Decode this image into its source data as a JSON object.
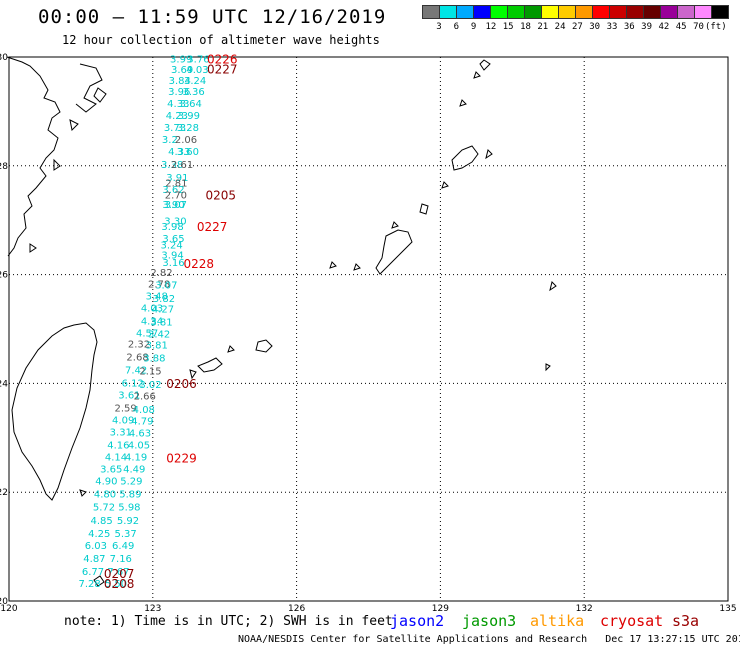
{
  "header": {
    "title": "00:00 — 11:59 UTC 12/16/2019",
    "subtitle": "12 hour collection of altimeter wave heights"
  },
  "colorbar": {
    "colors": [
      "#777777",
      "#00e5e5",
      "#00aaff",
      "#0000ff",
      "#00ff00",
      "#00cc00",
      "#009900",
      "#ffff00",
      "#ffcc00",
      "#ff9900",
      "#ff0000",
      "#cc0000",
      "#990000",
      "#660000",
      "#990099",
      "#cc66cc",
      "#ff88ff",
      "#000000"
    ],
    "labels": [
      "3",
      "6",
      "9",
      "12",
      "15",
      "18",
      "21",
      "24",
      "27",
      "30",
      "33",
      "36",
      "39",
      "42",
      "45",
      "70",
      "(ft)"
    ]
  },
  "map": {
    "lon_range": [
      120,
      135
    ],
    "lat_range": [
      20,
      30
    ],
    "lon_ticks": [
      "120",
      "123",
      "126",
      "129",
      "132",
      "135"
    ],
    "lat_ticks": [
      "30",
      "28",
      "26",
      "24",
      "22",
      "20"
    ],
    "colors": {
      "cyan": "#00cccc",
      "gray": "#555555",
      "red": "#dd0000",
      "darkred": "#880000"
    }
  },
  "chart_data": {
    "type": "scatter",
    "xlabel": "",
    "ylabel": "",
    "xlim": [
      120,
      135
    ],
    "ylim": [
      20,
      30
    ],
    "swh_labels": [
      {
        "lon": 123.36,
        "lat": 29.9,
        "t": "3.99",
        "c": "cyan"
      },
      {
        "lon": 123.72,
        "lat": 29.9,
        "t": "3.76",
        "c": "cyan"
      },
      {
        "lon": 123.38,
        "lat": 29.71,
        "t": "3.69",
        "c": "cyan"
      },
      {
        "lon": 123.7,
        "lat": 29.71,
        "t": "4.03",
        "c": "cyan"
      },
      {
        "lon": 123.33,
        "lat": 29.5,
        "t": "3.84",
        "c": "cyan"
      },
      {
        "lon": 123.65,
        "lat": 29.5,
        "t": "3.24",
        "c": "cyan"
      },
      {
        "lon": 123.32,
        "lat": 29.3,
        "t": "3.96",
        "c": "cyan"
      },
      {
        "lon": 123.62,
        "lat": 29.3,
        "t": "3.36",
        "c": "cyan"
      },
      {
        "lon": 123.3,
        "lat": 29.08,
        "t": "4.33",
        "c": "cyan"
      },
      {
        "lon": 123.56,
        "lat": 29.08,
        "t": "3.64",
        "c": "cyan"
      },
      {
        "lon": 123.27,
        "lat": 28.86,
        "t": "4.23",
        "c": "cyan"
      },
      {
        "lon": 123.52,
        "lat": 28.86,
        "t": "3.99",
        "c": "cyan"
      },
      {
        "lon": 123.23,
        "lat": 28.64,
        "t": "3.73",
        "c": "cyan"
      },
      {
        "lon": 123.5,
        "lat": 28.64,
        "t": "3.28",
        "c": "cyan"
      },
      {
        "lon": 123.19,
        "lat": 28.42,
        "t": "3.2",
        "c": "cyan"
      },
      {
        "lon": 123.46,
        "lat": 28.42,
        "t": "2.06",
        "c": "gray"
      },
      {
        "lon": 123.32,
        "lat": 28.2,
        "t": "4.33",
        "c": "cyan"
      },
      {
        "lon": 123.5,
        "lat": 28.2,
        "t": "3.60",
        "c": "cyan"
      },
      {
        "lon": 123.17,
        "lat": 27.96,
        "t": "3.38",
        "c": "cyan"
      },
      {
        "lon": 123.38,
        "lat": 27.96,
        "t": "2.61",
        "c": "gray"
      },
      {
        "lon": 123.28,
        "lat": 27.72,
        "t": "3.91",
        "c": "cyan"
      },
      {
        "lon": 123.26,
        "lat": 27.62,
        "t": "2.81",
        "c": "gray"
      },
      {
        "lon": 123.2,
        "lat": 27.5,
        "t": "3.62",
        "c": "cyan"
      },
      {
        "lon": 123.25,
        "lat": 27.4,
        "t": "2.70",
        "c": "gray"
      },
      {
        "lon": 123.2,
        "lat": 27.22,
        "t": "3.90",
        "c": "cyan"
      },
      {
        "lon": 123.25,
        "lat": 27.22,
        "t": "3.07",
        "c": "cyan"
      },
      {
        "lon": 123.24,
        "lat": 26.92,
        "t": "3.30",
        "c": "cyan"
      },
      {
        "lon": 123.18,
        "lat": 26.82,
        "t": "3.98",
        "c": "cyan"
      },
      {
        "lon": 123.2,
        "lat": 26.6,
        "t": "3.65",
        "c": "cyan"
      },
      {
        "lon": 123.16,
        "lat": 26.48,
        "t": "3.24",
        "c": "cyan"
      },
      {
        "lon": 123.18,
        "lat": 26.3,
        "t": "3.94",
        "c": "cyan"
      },
      {
        "lon": 123.2,
        "lat": 26.16,
        "t": "3.16",
        "c": "cyan"
      },
      {
        "lon": 122.95,
        "lat": 25.97,
        "t": "2.82",
        "c": "gray"
      },
      {
        "lon": 122.9,
        "lat": 25.76,
        "t": "2.78",
        "c": "gray"
      },
      {
        "lon": 123.05,
        "lat": 25.74,
        "t": "3.07",
        "c": "cyan"
      },
      {
        "lon": 122.85,
        "lat": 25.54,
        "t": "3.48",
        "c": "cyan"
      },
      {
        "lon": 123.0,
        "lat": 25.5,
        "t": "3.82",
        "c": "cyan"
      },
      {
        "lon": 122.75,
        "lat": 25.32,
        "t": "4.03",
        "c": "cyan"
      },
      {
        "lon": 122.98,
        "lat": 25.3,
        "t": "4.27",
        "c": "cyan"
      },
      {
        "lon": 122.75,
        "lat": 25.08,
        "t": "4.34",
        "c": "cyan"
      },
      {
        "lon": 122.95,
        "lat": 25.06,
        "t": "3.81",
        "c": "cyan"
      },
      {
        "lon": 122.65,
        "lat": 24.86,
        "t": "4.57",
        "c": "cyan"
      },
      {
        "lon": 122.9,
        "lat": 24.84,
        "t": "3.42",
        "c": "cyan"
      },
      {
        "lon": 122.48,
        "lat": 24.66,
        "t": "2.32",
        "c": "gray"
      },
      {
        "lon": 122.85,
        "lat": 24.64,
        "t": "3.81",
        "c": "cyan"
      },
      {
        "lon": 122.45,
        "lat": 24.42,
        "t": "2.68",
        "c": "gray"
      },
      {
        "lon": 122.8,
        "lat": 24.4,
        "t": "3.88",
        "c": "cyan"
      },
      {
        "lon": 122.42,
        "lat": 24.18,
        "t": "7.42",
        "c": "cyan"
      },
      {
        "lon": 122.72,
        "lat": 24.16,
        "t": "2.15",
        "c": "gray"
      },
      {
        "lon": 122.35,
        "lat": 23.94,
        "t": "6.12",
        "c": "cyan"
      },
      {
        "lon": 122.72,
        "lat": 23.92,
        "t": "3.02",
        "c": "cyan"
      },
      {
        "lon": 122.28,
        "lat": 23.72,
        "t": "3.61",
        "c": "cyan"
      },
      {
        "lon": 122.6,
        "lat": 23.7,
        "t": "2.66",
        "c": "gray"
      },
      {
        "lon": 122.2,
        "lat": 23.48,
        "t": "2.59",
        "c": "gray"
      },
      {
        "lon": 122.58,
        "lat": 23.46,
        "t": "4.08",
        "c": "cyan"
      },
      {
        "lon": 122.15,
        "lat": 23.26,
        "t": "4.09",
        "c": "cyan"
      },
      {
        "lon": 122.55,
        "lat": 23.24,
        "t": "4.79",
        "c": "cyan"
      },
      {
        "lon": 122.1,
        "lat": 23.04,
        "t": "3.31",
        "c": "cyan"
      },
      {
        "lon": 122.5,
        "lat": 23.02,
        "t": "4.63",
        "c": "cyan"
      },
      {
        "lon": 122.05,
        "lat": 22.8,
        "t": "4.16",
        "c": "cyan"
      },
      {
        "lon": 122.48,
        "lat": 22.8,
        "t": "4.05",
        "c": "cyan"
      },
      {
        "lon": 122.0,
        "lat": 22.58,
        "t": "4.14",
        "c": "cyan"
      },
      {
        "lon": 122.42,
        "lat": 22.58,
        "t": "4.19",
        "c": "cyan"
      },
      {
        "lon": 121.9,
        "lat": 22.36,
        "t": "3.65",
        "c": "cyan"
      },
      {
        "lon": 122.38,
        "lat": 22.36,
        "t": "4.49",
        "c": "cyan"
      },
      {
        "lon": 121.8,
        "lat": 22.14,
        "t": "4.90",
        "c": "cyan"
      },
      {
        "lon": 122.32,
        "lat": 22.14,
        "t": "5.29",
        "c": "cyan"
      },
      {
        "lon": 121.77,
        "lat": 21.9,
        "t": "4.80",
        "c": "cyan"
      },
      {
        "lon": 122.3,
        "lat": 21.9,
        "t": "5.89",
        "c": "cyan"
      },
      {
        "lon": 121.75,
        "lat": 21.66,
        "t": "5.72",
        "c": "cyan"
      },
      {
        "lon": 122.28,
        "lat": 21.66,
        "t": "5.98",
        "c": "cyan"
      },
      {
        "lon": 121.7,
        "lat": 21.42,
        "t": "4.85",
        "c": "cyan"
      },
      {
        "lon": 122.25,
        "lat": 21.42,
        "t": "5.92",
        "c": "cyan"
      },
      {
        "lon": 121.65,
        "lat": 21.18,
        "t": "4.25",
        "c": "cyan"
      },
      {
        "lon": 122.2,
        "lat": 21.18,
        "t": "5.37",
        "c": "cyan"
      },
      {
        "lon": 121.58,
        "lat": 20.96,
        "t": "6.03",
        "c": "cyan"
      },
      {
        "lon": 122.15,
        "lat": 20.96,
        "t": "6.49",
        "c": "cyan"
      },
      {
        "lon": 121.55,
        "lat": 20.72,
        "t": "4.87",
        "c": "cyan"
      },
      {
        "lon": 122.1,
        "lat": 20.72,
        "t": "7.16",
        "c": "cyan"
      },
      {
        "lon": 121.52,
        "lat": 20.48,
        "t": "6.77",
        "c": "cyan"
      },
      {
        "lon": 122.05,
        "lat": 20.48,
        "t": "7.67",
        "c": "cyan"
      },
      {
        "lon": 121.45,
        "lat": 20.26,
        "t": "7.28",
        "c": "cyan"
      },
      {
        "lon": 122.0,
        "lat": 20.26,
        "t": "5.50",
        "c": "cyan"
      }
    ],
    "time_labels": [
      {
        "lon": 124.13,
        "lat": 29.88,
        "t": "0226",
        "c": "red"
      },
      {
        "lon": 124.13,
        "lat": 29.7,
        "t": "0227",
        "c": "darkred"
      },
      {
        "lon": 124.1,
        "lat": 27.38,
        "t": "0205",
        "c": "darkred"
      },
      {
        "lon": 123.92,
        "lat": 26.8,
        "t": "0227",
        "c": "red"
      },
      {
        "lon": 123.64,
        "lat": 26.12,
        "t": "0228",
        "c": "red"
      },
      {
        "lon": 123.28,
        "lat": 23.92,
        "t": "0206",
        "c": "darkred"
      },
      {
        "lon": 123.28,
        "lat": 22.55,
        "t": "0229",
        "c": "red"
      },
      {
        "lon": 121.98,
        "lat": 20.42,
        "t": "0207",
        "c": "darkred"
      },
      {
        "lon": 121.98,
        "lat": 20.24,
        "t": "0208",
        "c": "darkred"
      }
    ]
  },
  "footer": {
    "note": "note: 1) Time is in UTC; 2) SWH is in feet",
    "missions": [
      {
        "name": "jason2",
        "color": "#0000ff"
      },
      {
        "name": "jason3",
        "color": "#009900"
      },
      {
        "name": "altika",
        "color": "#ff9900"
      },
      {
        "name": "cryosat",
        "color": "#dd0000"
      },
      {
        "name": "s3a",
        "color": "#990000"
      }
    ],
    "credit": "NOAA/NESDIS Center for Satellite Applications and Research",
    "timestamp": "Dec 17 13:27:15 UTC 2019"
  }
}
